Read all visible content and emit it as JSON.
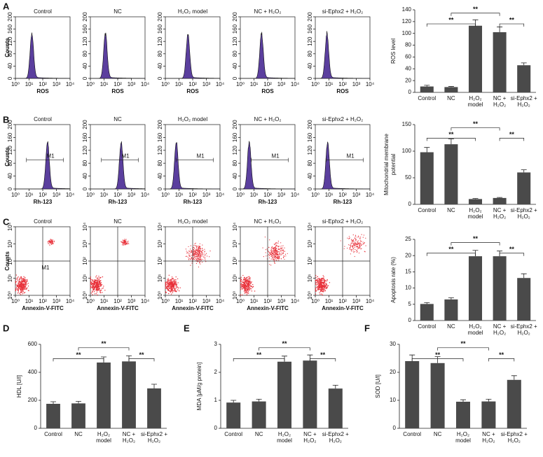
{
  "panel_letters": [
    "A",
    "B",
    "C",
    "D",
    "E",
    "F"
  ],
  "group_titles": [
    "Control",
    "NC",
    "H₂O₂ model",
    "NC + H₂O₂",
    "si-Ephx2 + H₂O₂"
  ],
  "flow_rows": [
    {
      "type": "histogram",
      "ylabel": "Counts",
      "xlabel": "ROS",
      "log_x": true,
      "xlim": [
        1,
        10000
      ],
      "xticks": [
        {
          "value": 1,
          "label": "10⁰"
        },
        {
          "value": 10,
          "label": "10¹"
        },
        {
          "value": 100,
          "label": "10²"
        },
        {
          "value": 1000,
          "label": "10³"
        },
        {
          "value": 10000,
          "label": "10⁴"
        }
      ],
      "ylim": [
        0,
        200
      ],
      "yticks": [
        0,
        40,
        80,
        120,
        160,
        200
      ],
      "color": "#5b3f9e"
    },
    {
      "type": "histogram",
      "ylabel": "Counts",
      "xlabel": "Rh-123",
      "log_x": true,
      "xlim": [
        1,
        10000
      ],
      "xticks": [
        {
          "value": 1,
          "label": "10⁰"
        },
        {
          "value": 10,
          "label": "10¹"
        },
        {
          "value": 100,
          "label": "10²"
        },
        {
          "value": 1000,
          "label": "10³"
        },
        {
          "value": 10000,
          "label": "10⁴"
        }
      ],
      "ylim": [
        0,
        200
      ],
      "yticks": [
        0,
        40,
        80,
        120,
        160,
        200
      ],
      "marker": "M1",
      "color": "#5b3f9e"
    },
    {
      "type": "scatter",
      "ylabel": "Counts",
      "xlabel": "Annexin-V-FITC",
      "log_x": true,
      "log_y": true,
      "xlim": [
        1,
        10000
      ],
      "xticks": [
        {
          "value": 1,
          "label": "10⁰"
        },
        {
          "value": 10,
          "label": "10¹"
        },
        {
          "value": 100,
          "label": "10²"
        },
        {
          "value": 1000,
          "label": "10³"
        },
        {
          "value": 10000,
          "label": "10⁴"
        }
      ],
      "ylim": [
        1,
        10000
      ],
      "yticks": [
        {
          "value": 1,
          "label": "10⁰"
        },
        {
          "value": 10,
          "label": "10¹"
        },
        {
          "value": 100,
          "label": "10²"
        },
        {
          "value": 1000,
          "label": "10³"
        },
        {
          "value": 10000,
          "label": "10⁴"
        }
      ],
      "marker": "M1",
      "color": "#e8313a"
    }
  ],
  "chart_data": [
    {
      "type": "bar",
      "ylabel": [
        "ROS level"
      ],
      "categories": [
        [
          "Control"
        ],
        [
          "NC"
        ],
        [
          "H₂O₂",
          "model"
        ],
        [
          "NC +",
          "H₂O₂"
        ],
        [
          "si-Ephx2 +",
          "H₂O₂"
        ]
      ],
      "values": [
        10,
        9,
        113,
        102,
        46
      ],
      "errors": [
        2,
        1,
        10,
        9,
        4
      ],
      "ylim": [
        0,
        140
      ],
      "yticks": [
        0,
        20,
        40,
        60,
        80,
        100,
        120,
        140
      ],
      "annotations": [
        "**",
        "**",
        "**"
      ],
      "color": "#4a4a4a"
    },
    {
      "type": "bar",
      "ylabel": [
        "Mitochondrial membrane",
        "potential"
      ],
      "categories": [
        [
          "Control"
        ],
        [
          "NC"
        ],
        [
          "H₂O₂",
          "model"
        ],
        [
          "NC +",
          "H₂O₂"
        ],
        [
          "si-Ephx2 +",
          "H₂O₂"
        ]
      ],
      "values": [
        98,
        113,
        10,
        12,
        60
      ],
      "errors": [
        9,
        10,
        1,
        1,
        5
      ],
      "ylim": [
        0,
        150
      ],
      "yticks": [
        0,
        50,
        100,
        150
      ],
      "annotations": [
        "**",
        "**",
        "**"
      ],
      "color": "#4a4a4a"
    },
    {
      "type": "bar",
      "ylabel": [
        "Apoptosis rate (%)"
      ],
      "categories": [
        [
          "Control"
        ],
        [
          "NC"
        ],
        [
          "H₂O₂",
          "model"
        ],
        [
          "NC +",
          "H₂O₂"
        ],
        [
          "si-Ephx2 +",
          "H₂O₂"
        ]
      ],
      "values": [
        5.1,
        6.5,
        19.8,
        19.8,
        13.1
      ],
      "errors": [
        0.4,
        0.5,
        1.8,
        1.6,
        1.3
      ],
      "ylim": [
        0,
        25
      ],
      "yticks": [
        0,
        5,
        10,
        15,
        20,
        25
      ],
      "annotations": [
        "**",
        "**",
        "**"
      ],
      "color": "#4a4a4a"
    },
    {
      "type": "bar",
      "ylabel": [
        "HDL [U/l]"
      ],
      "categories": [
        [
          "Control"
        ],
        [
          "NC"
        ],
        [
          "H₂O₂",
          "model"
        ],
        [
          "NC +",
          "H₂O₂"
        ],
        [
          "si-Ephx2 +",
          "H₂O₂"
        ]
      ],
      "values": [
        175,
        178,
        470,
        478,
        285
      ],
      "errors": [
        15,
        15,
        40,
        40,
        30
      ],
      "ylim": [
        0,
        600
      ],
      "yticks": [
        0,
        200,
        400,
        600
      ],
      "annotations": [
        "**",
        "**",
        "**"
      ],
      "color": "#4a4a4a"
    },
    {
      "type": "bar",
      "ylabel": [
        "MDA [μM/g protein]"
      ],
      "categories": [
        [
          "Control"
        ],
        [
          "NC"
        ],
        [
          "H₂O₂",
          "model"
        ],
        [
          "NC +",
          "H₂O₂"
        ],
        [
          "si-Ephx2 +",
          "H₂O₂"
        ]
      ],
      "values": [
        0.92,
        0.96,
        2.38,
        2.42,
        1.42
      ],
      "errors": [
        0.08,
        0.08,
        0.2,
        0.2,
        0.12
      ],
      "ylim": [
        0,
        3
      ],
      "yticks": [
        0,
        1,
        2,
        3
      ],
      "annotations": [
        "**",
        "**",
        "**"
      ],
      "color": "#4a4a4a"
    },
    {
      "type": "bar",
      "ylabel": [
        "SOD [U/l]"
      ],
      "categories": [
        [
          "Control"
        ],
        [
          "NC"
        ],
        [
          "H₂O₂",
          "model"
        ],
        [
          "NC +",
          "H₂O₂"
        ],
        [
          "si-Ephx2 +",
          "H₂O₂"
        ]
      ],
      "values": [
        24,
        23.3,
        9.5,
        9.6,
        17.3
      ],
      "errors": [
        2.2,
        2.3,
        0.7,
        0.8,
        1.5
      ],
      "ylim": [
        0,
        30
      ],
      "yticks": [
        0,
        10,
        20,
        30
      ],
      "annotations": [
        "**",
        "**",
        "**"
      ],
      "color": "#4a4a4a"
    }
  ]
}
